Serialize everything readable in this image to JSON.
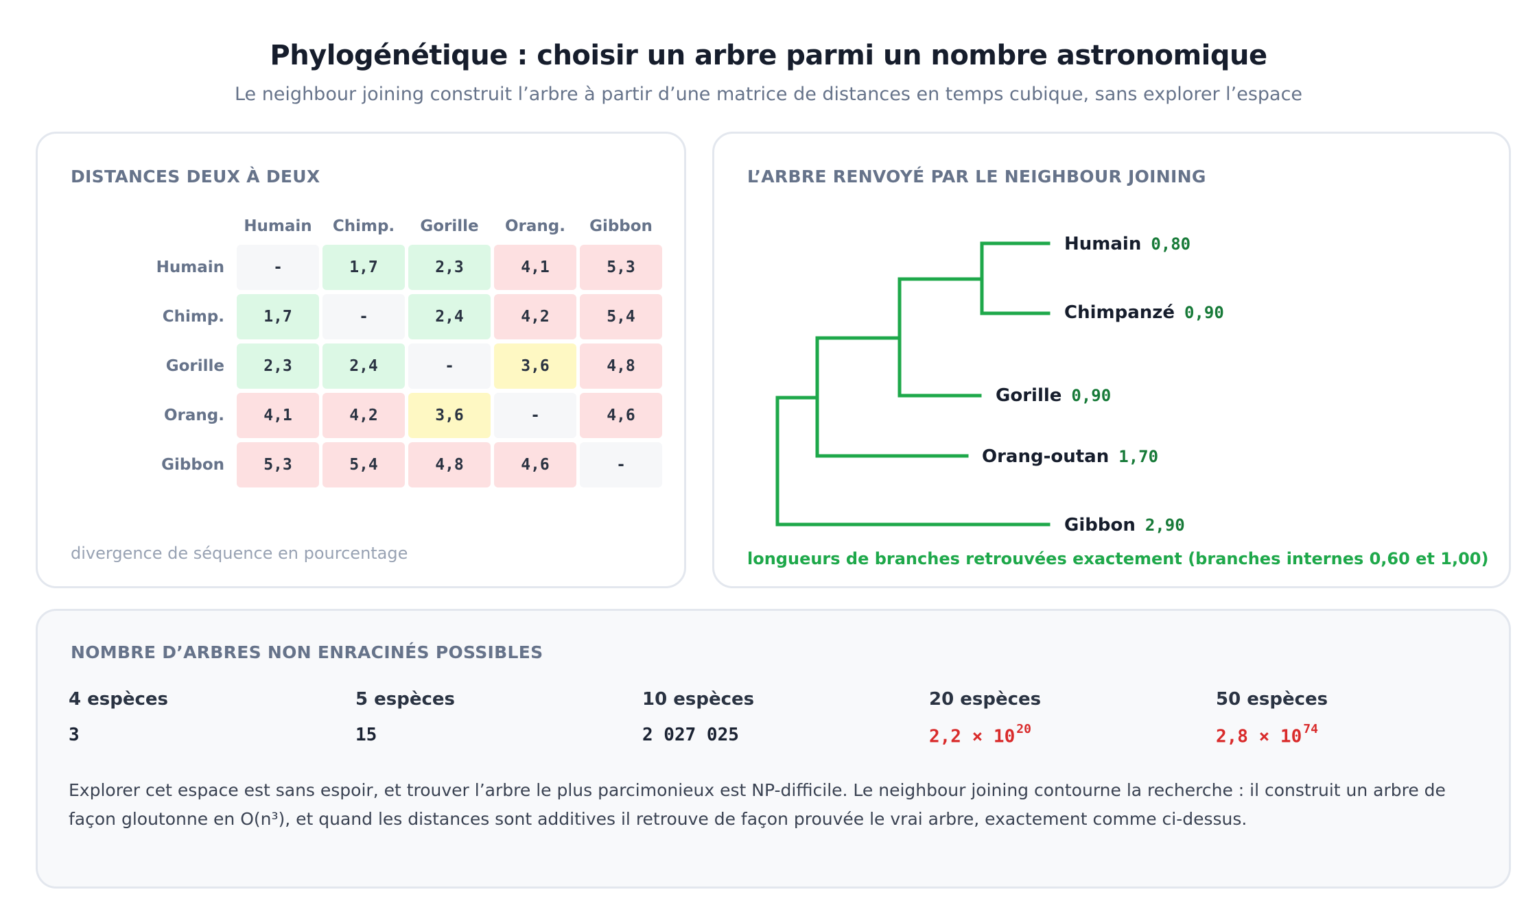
{
  "header": {
    "title": "Phylogénétique : choisir un arbre parmi un nombre astronomique",
    "subtitle": "Le neighbour joining construit l’arbre à partir d’une matrice de distances en temps cubique, sans explorer l’espace"
  },
  "matrix_card": {
    "title": "DISTANCES DEUX À DEUX",
    "columns": [
      "Humain",
      "Chimp.",
      "Gorille",
      "Orang.",
      "Gibbon"
    ],
    "rows": [
      {
        "label": "Humain",
        "cells": [
          "-",
          "1,7",
          "2,3",
          "4,1",
          "5,3"
        ]
      },
      {
        "label": "Chimp.",
        "cells": [
          "1,7",
          "-",
          "2,4",
          "4,2",
          "5,4"
        ]
      },
      {
        "label": "Gorille",
        "cells": [
          "2,3",
          "2,4",
          "-",
          "3,6",
          "4,8"
        ]
      },
      {
        "label": "Orang.",
        "cells": [
          "4,1",
          "4,2",
          "3,6",
          "-",
          "4,6"
        ]
      },
      {
        "label": "Gibbon",
        "cells": [
          "5,3",
          "5,4",
          "4,8",
          "4,6",
          "-"
        ]
      }
    ],
    "cell_colors": {
      "diagonal": "#f6f7f9",
      "near": "#dcf8e5",
      "mid": "#fef8c3",
      "far": "#fde0e1"
    },
    "note": "divergence de séquence en pourcentage"
  },
  "tree_card": {
    "title": "L’ARBRE RENVOYÉ PAR LE NEIGHBOUR JOINING",
    "leaves": [
      {
        "name": "Humain",
        "length": "0,80"
      },
      {
        "name": "Chimpanzé",
        "length": "0,90"
      },
      {
        "name": "Gorille",
        "length": "0,90"
      },
      {
        "name": "Orang-outan",
        "length": "1,70"
      },
      {
        "name": "Gibbon",
        "length": "2,90"
      }
    ],
    "branch_color": "#1ea84a",
    "note": "longueurs de branches retrouvées exactement (branches internes 0,60 et 1,00)"
  },
  "counts_card": {
    "title": "NOMBRE D’ARBRES NON ENRACINÉS POSSIBLES",
    "items": [
      {
        "label": "4 espèces",
        "mantissa": "3",
        "exponent": ""
      },
      {
        "label": "5 espèces",
        "mantissa": "15",
        "exponent": ""
      },
      {
        "label": "10 espèces",
        "mantissa": "2 027 025",
        "exponent": ""
      },
      {
        "label": "20 espèces",
        "mantissa": "2,2 × 10",
        "exponent": "20"
      },
      {
        "label": "50 espèces",
        "mantissa": "2,8 × 10",
        "exponent": "74"
      }
    ],
    "highlight_color": "#d92b2b",
    "explanation": "Explorer cet espace est sans espoir, et trouver l’arbre le plus parcimonieux est NP-difficile. Le neighbour joining contourne la recherche : il construit un arbre de façon gloutonne en O(n³), et quand les distances sont additives il retrouve de façon prouvée le vrai arbre, exactement comme ci-dessus."
  }
}
